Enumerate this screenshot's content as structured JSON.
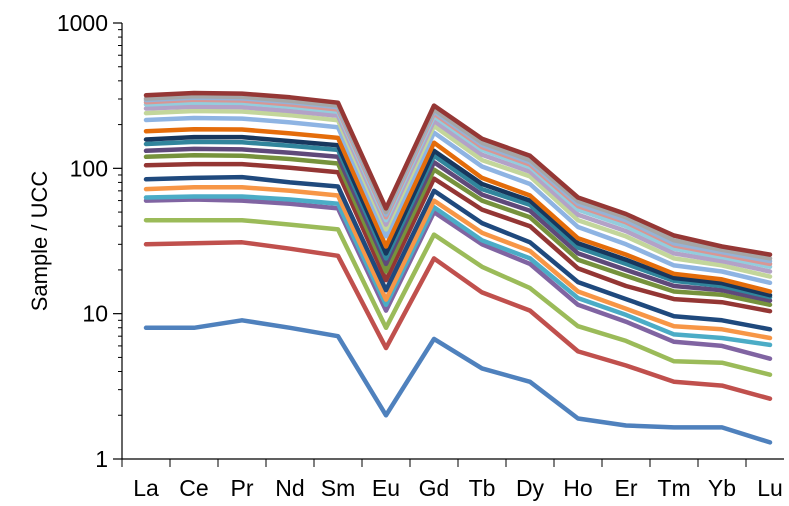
{
  "chart_data": {
    "type": "line",
    "title": "",
    "xlabel": "",
    "ylabel": "Sample / UCC",
    "yscale": "log",
    "ylim": [
      1,
      1000
    ],
    "y_tick_labels": [
      "1",
      "10",
      "100",
      "1000"
    ],
    "grid": false,
    "legend": "none",
    "categories": [
      "La",
      "Ce",
      "Pr",
      "Nd",
      "Sm",
      "Eu",
      "Gd",
      "Tb",
      "Dy",
      "Ho",
      "Er",
      "Tm",
      "Yb",
      "Lu"
    ],
    "series": [
      {
        "color": "#4f81bd",
        "values": [
          8,
          8,
          9,
          8,
          7,
          2,
          6.7,
          4.2,
          3.4,
          1.9,
          1.7,
          1.65,
          1.65,
          1.3
        ]
      },
      {
        "color": "#c0504d",
        "values": [
          30,
          30.5,
          31,
          28,
          25,
          5.8,
          24,
          14,
          10.5,
          5.5,
          4.4,
          3.4,
          3.2,
          2.6
        ]
      },
      {
        "color": "#9bbb59",
        "values": [
          44,
          44,
          44,
          41,
          38,
          8,
          35,
          21,
          15,
          8.2,
          6.5,
          4.7,
          4.6,
          3.8
        ]
      },
      {
        "color": "#8064a2",
        "values": [
          60,
          61,
          60,
          57,
          53,
          10.5,
          50,
          30,
          22,
          11.5,
          8.8,
          6.4,
          6.0,
          4.9
        ]
      },
      {
        "color": "#4bacc6",
        "values": [
          63,
          64,
          64,
          61,
          57,
          11.5,
          54,
          32,
          24,
          12.8,
          9.8,
          7.2,
          6.8,
          6.1
        ]
      },
      {
        "color": "#f79646",
        "values": [
          72,
          74,
          74,
          70,
          65,
          12.5,
          60,
          36,
          27,
          14.2,
          10.8,
          8.2,
          7.8,
          6.8
        ]
      },
      {
        "color": "#1f497d",
        "values": [
          84,
          86,
          87,
          80,
          75,
          14.5,
          70,
          42,
          31,
          16.5,
          12.6,
          9.6,
          9.0,
          7.8
        ]
      },
      {
        "color": "#943634",
        "values": [
          105,
          107,
          107,
          101,
          94,
          17,
          85,
          52,
          40,
          20.5,
          15.5,
          12.6,
          12.0,
          10.4
        ]
      },
      {
        "color": "#76923c",
        "values": [
          120,
          123,
          122,
          116,
          108,
          19.5,
          98,
          60,
          46,
          23.5,
          18.2,
          14.2,
          13.5,
          11.5
        ]
      },
      {
        "color": "#5f497a",
        "values": [
          132,
          136,
          135,
          128,
          120,
          22,
          110,
          66,
          51,
          26,
          20,
          15.5,
          14.5,
          12.3
        ]
      },
      {
        "color": "#31859c",
        "values": [
          147,
          152,
          151,
          143,
          134,
          24,
          122,
          72,
          56,
          28.5,
          22,
          16.8,
          15.5,
          13.0
        ]
      },
      {
        "color": "#17375e",
        "values": [
          158,
          164,
          164,
          154,
          144,
          26,
          132,
          78,
          60,
          30.5,
          23.5,
          17.6,
          16.2,
          13.4
        ]
      },
      {
        "color": "#e46c0a",
        "values": [
          180,
          186,
          185,
          174,
          162,
          29,
          150,
          86,
          65,
          33,
          25.5,
          18.8,
          17.2,
          14.2
        ]
      },
      {
        "color": "#8eb4e3",
        "values": [
          215,
          222,
          220,
          207,
          192,
          34,
          176,
          103,
          78,
          39.5,
          30,
          21.5,
          19.5,
          16.3
        ]
      },
      {
        "color": "#c3d69b",
        "values": [
          240,
          248,
          246,
          232,
          214,
          38,
          196,
          114,
          88,
          44,
          34,
          24,
          21.5,
          18.0
        ]
      },
      {
        "color": "#b3a2c7",
        "values": [
          258,
          266,
          264,
          248,
          230,
          41,
          212,
          124,
          95,
          48,
          37,
          26,
          23,
          19.5
        ]
      },
      {
        "color": "#93cddd",
        "values": [
          275,
          284,
          282,
          265,
          245,
          44,
          228,
          134,
          102,
          52,
          40,
          28,
          24.5,
          21.0
        ]
      },
      {
        "color": "#d99694",
        "values": [
          285,
          296,
          293,
          275,
          254,
          46,
          238,
          140,
          106,
          55,
          42.5,
          29.5,
          25.5,
          22.0
        ]
      },
      {
        "color": "#95b3d7",
        "values": [
          295,
          306,
          303,
          285,
          263,
          48,
          246,
          145,
          110,
          57,
          44,
          30.5,
          26.5,
          23.0
        ]
      },
      {
        "color": "#a6a6a6",
        "values": [
          302,
          313,
          310,
          292,
          270,
          50,
          254,
          150,
          114,
          59.5,
          46,
          32,
          27.5,
          24.0
        ]
      },
      {
        "color": "#953735",
        "values": [
          318,
          330,
          327,
          308,
          283,
          53,
          270,
          160,
          122,
          63,
          48.5,
          34.5,
          29,
          25.5
        ]
      }
    ]
  }
}
